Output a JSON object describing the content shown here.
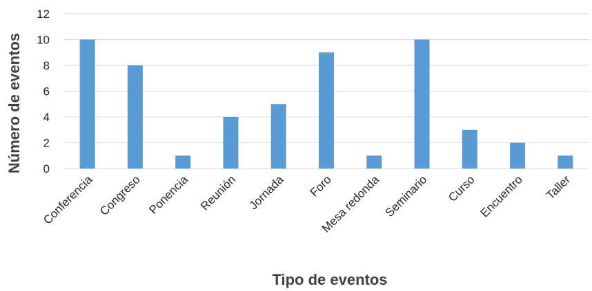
{
  "chart_data": {
    "type": "bar",
    "categories": [
      "Conferencia",
      "Congreso",
      "Ponencia",
      "Reunión",
      "Jornada",
      "Foro",
      "Mesa redonda",
      "Seminario",
      "Curso",
      "Encuentro",
      "Taller"
    ],
    "values": [
      10,
      8,
      1,
      4,
      5,
      9,
      1,
      10,
      3,
      2,
      1
    ],
    "title": "",
    "xlabel": "Tipo de eventos",
    "ylabel": "Número de eventos",
    "ylim": [
      0,
      12
    ],
    "yticks": [
      0,
      2,
      4,
      6,
      8,
      10,
      12
    ],
    "grid": true,
    "legend": "none",
    "colors": {
      "bar": "#5b9bd5",
      "grid": "#d9d9d9",
      "text": "#262626",
      "axis_title": "#404040"
    }
  }
}
